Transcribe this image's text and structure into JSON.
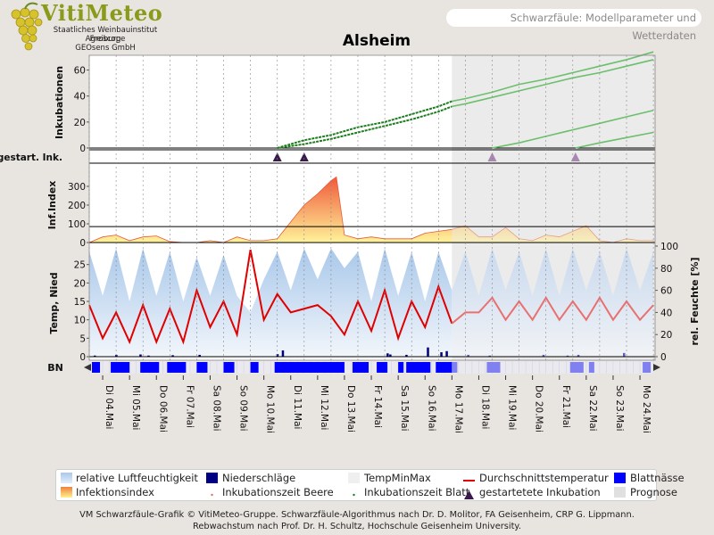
{
  "header": {
    "brand": "VitiMeteo",
    "lines": [
      "Staatliches Weinbauinstitut Freiburg",
      "Agroscope",
      "GEOsens GmbH"
    ],
    "subtitle": "Schwarzfäule: Modellparameter und Wetterdaten"
  },
  "colors": {
    "dark_green": "#1e7d1e",
    "light_green": "#6cbf6c",
    "temp_red": "#e00000",
    "temp_red_forecast": "#e87070",
    "blue": "#0000ff",
    "navy": "#000080",
    "humid_blue": "#a9c8ea",
    "forecast_bg": "#ebebeb",
    "purple": "#3a1a4a",
    "purple_forecast": "#a888b0"
  },
  "chart_data": [
    {
      "type": "line",
      "title": "Alsheim",
      "ylabel": "Inkubationen",
      "ylim": [
        0,
        70
      ],
      "yticks": [
        0,
        20,
        40,
        60
      ],
      "forecast_start_day": 13.5,
      "series": [
        {
          "name": "Inkubationszeit Blatt",
          "x": [
            7.0,
            8.0,
            9.0,
            10.0,
            11.0,
            12.0,
            13.0,
            13.5,
            14,
            15,
            16,
            17,
            18,
            19,
            20,
            21
          ],
          "y": [
            0,
            6,
            10,
            16,
            20,
            26,
            32,
            36,
            38,
            43,
            49,
            53,
            58,
            63,
            68,
            74
          ]
        },
        {
          "name": "Inkubationszeit Beere",
          "x": [
            7.0,
            8.0,
            9.0,
            10.0,
            11.0,
            12.0,
            13.0,
            13.5,
            14,
            15,
            16,
            17,
            18,
            19,
            20,
            21
          ],
          "y": [
            0,
            3,
            7,
            12,
            17,
            22,
            28,
            32,
            34,
            39,
            44,
            49,
            54,
            58,
            63,
            68
          ]
        },
        {
          "x": [
            15.0,
            16,
            17,
            18,
            19,
            20,
            21
          ],
          "y": [
            0,
            4,
            9,
            14,
            19,
            24,
            29
          ]
        },
        {
          "x": [
            18.1,
            19,
            20,
            21
          ],
          "y": [
            0,
            4,
            8,
            12
          ]
        }
      ]
    },
    {
      "type": "scatter",
      "ylabel": "gestart. Ink.",
      "series": [
        {
          "name": "gestartetete Inkubation",
          "x": [
            7.0,
            8.0,
            15.0,
            18.1
          ]
        }
      ]
    },
    {
      "type": "area",
      "ylabel": "Inf.Index",
      "ylim": [
        0,
        400
      ],
      "yticks": [
        0,
        100,
        200,
        300
      ],
      "threshold": 85,
      "series": [
        {
          "name": "Infektionsindex",
          "x": [
            0,
            0.5,
            1,
            1.5,
            2,
            2.5,
            3,
            3.5,
            4,
            4.5,
            5,
            5.5,
            6,
            6.5,
            7,
            7.5,
            8,
            8.5,
            9,
            9.2,
            9.5,
            10,
            10.5,
            11,
            11.5,
            12,
            12.5,
            13,
            13.5,
            14,
            14.5,
            15,
            15.5,
            16,
            16.5,
            17,
            17.5,
            18,
            18.5,
            19,
            19.5,
            20,
            20.5,
            21
          ],
          "y": [
            0,
            30,
            40,
            10,
            30,
            35,
            5,
            0,
            0,
            10,
            0,
            30,
            10,
            10,
            20,
            110,
            200,
            260,
            330,
            350,
            40,
            20,
            30,
            20,
            20,
            20,
            50,
            60,
            70,
            90,
            30,
            30,
            80,
            20,
            10,
            40,
            30,
            60,
            90,
            10,
            0,
            20,
            10,
            10
          ]
        }
      ]
    },
    {
      "type": "line",
      "ylabel": "Temp, Nied",
      "ylabel_right": "rel. Feuchte [%]",
      "ylim": [
        0,
        30
      ],
      "yticks": [
        0,
        5,
        10,
        15,
        20,
        25
      ],
      "ylim_right": [
        0,
        100
      ],
      "yticks_right": [
        0,
        20,
        40,
        60,
        80,
        100
      ],
      "series": [
        {
          "name": "Durchschnittstemperatur",
          "x": [
            0,
            0.5,
            1,
            1.5,
            2,
            2.5,
            3,
            3.5,
            4,
            4.5,
            5,
            5.5,
            6,
            6.5,
            7,
            7.5,
            8,
            8.5,
            9,
            9.5,
            10,
            10.5,
            11,
            11.5,
            12,
            12.5,
            13,
            13.5,
            14,
            14.5,
            15,
            15.5,
            16,
            16.5,
            17,
            17.5,
            18,
            18.5,
            19,
            19.5,
            20,
            20.5,
            21
          ],
          "y": [
            14,
            5,
            12,
            4,
            14,
            4,
            13,
            4,
            18,
            8,
            15,
            6,
            29,
            10,
            17,
            12,
            13,
            14,
            11,
            6,
            15,
            7,
            18,
            5,
            15,
            8,
            19,
            9,
            12,
            12,
            16,
            10,
            15,
            10,
            16,
            10,
            15,
            10,
            16,
            10,
            15,
            10,
            14
          ]
        },
        {
          "name": "relative Luftfeuchtigkeit",
          "x": [
            0,
            0.5,
            1,
            1.5,
            2,
            2.5,
            3,
            3.5,
            4,
            4.5,
            5,
            5.5,
            6,
            6.5,
            7,
            7.5,
            8,
            8.5,
            9,
            9.5,
            10,
            10.5,
            11,
            11.5,
            12,
            12.5,
            13,
            13.5,
            14,
            14.5,
            15,
            15.5,
            16,
            16.5,
            17,
            17.5,
            18,
            18.5,
            19,
            19.5,
            20,
            20.5,
            21
          ],
          "y": [
            95,
            55,
            98,
            50,
            98,
            55,
            95,
            50,
            90,
            55,
            92,
            55,
            40,
            70,
            95,
            60,
            98,
            70,
            98,
            80,
            95,
            50,
            98,
            55,
            95,
            50,
            95,
            60,
            95,
            55,
            98,
            60,
            95,
            55,
            98,
            55,
            98,
            60,
            95,
            55,
            98,
            60,
            95
          ]
        },
        {
          "name": "Niederschläge",
          "x": [
            0.2,
            1.0,
            1.9,
            2.2,
            3.1,
            4.1,
            7.0,
            7.2,
            11.1,
            11.2,
            11.8,
            12.6,
            13.1,
            13.3,
            14.1,
            14.9,
            16.9,
            17.8,
            18.2,
            19.9
          ],
          "y": [
            0.3,
            0.5,
            0.6,
            0.3,
            0.4,
            0.5,
            0.7,
            1.7,
            0.9,
            0.6,
            0.5,
            2.5,
            1.2,
            1.5,
            0.5,
            0.3,
            0.5,
            0.3,
            0.5,
            1.0
          ]
        }
      ]
    }
  ],
  "bn_label": "BN",
  "bn_wet_intervals": [
    [
      0.1,
      0.4
    ],
    [
      0.8,
      1.5
    ],
    [
      1.9,
      2.6
    ],
    [
      2.9,
      3.6
    ],
    [
      4.0,
      4.4
    ],
    [
      5.0,
      5.4
    ],
    [
      6.0,
      6.3
    ],
    [
      6.9,
      9.5
    ],
    [
      9.8,
      10.4
    ],
    [
      10.7,
      11.1
    ],
    [
      11.5,
      11.7
    ],
    [
      11.8,
      12.7
    ],
    [
      12.9,
      13.5
    ],
    [
      13.5,
      13.7
    ],
    [
      14.8,
      15.3
    ],
    [
      17.9,
      18.4
    ],
    [
      18.6,
      18.8
    ],
    [
      20.6,
      20.9
    ]
  ],
  "day_labels": [
    "Di 04.Mai",
    "Mi 05.Mai",
    "Do 06.Mai",
    "Fr 07.Mai",
    "Sa 08.Mai",
    "So 09.Mai",
    "Mo 10.Mai",
    "Di 11.Mai",
    "Mi 12.Mai",
    "Do 13.Mai",
    "Fr 14.Mai",
    "Sa 15.Mai",
    "So 16.Mai",
    "Mo 17.Mai",
    "Di 18.Mai",
    "Mi 19.Mai",
    "Do 20.Mai",
    "Fr 21.Mai",
    "Sa 22.Mai",
    "So 23.Mai",
    "Mo 24.Mai"
  ],
  "legend": {
    "humidity": "relative Luftfeuchtigkeit",
    "infection": "Infektionsindex",
    "rain": "Niederschläge",
    "incub_berry": "Inkubationszeit Beere",
    "tempminmax": "TempMinMax",
    "incub_leaf": "Inkubationszeit Blatt",
    "avg_temp": "Durchschnittstemperatur",
    "started": "gestartetete Inkubation",
    "leafwet": "Blattnässe",
    "forecast": "Prognose"
  },
  "footer": {
    "line1": "VM Schwarzfäule-Grafik © VitiMeteo-Gruppe. Schwarzfäule-Algorithmus nach Dr. D. Molitor, FA Geisenheim, CRP G. Lippmann.",
    "line2": "Rebwachstum nach Prof. Dr. H. Schultz, Hochschule Geisenheim University."
  }
}
